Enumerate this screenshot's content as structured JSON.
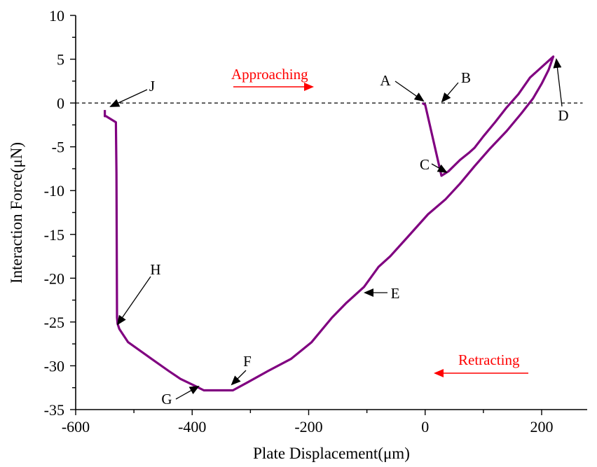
{
  "chart_data": {
    "type": "line",
    "xlabel": "Plate Displacement(μm)",
    "ylabel": "Interaction Force(μN)",
    "xlim": [
      -600,
      280
    ],
    "ylim": [
      -35,
      10
    ],
    "xticks": [
      -600,
      -400,
      -200,
      0,
      200
    ],
    "yticks": [
      10,
      5,
      0,
      -5,
      -10,
      -15,
      -20,
      -25,
      -30,
      -35
    ],
    "grid": false,
    "legend": "none",
    "reference_line": {
      "y": 0,
      "style": "dashed"
    },
    "series": [
      {
        "color": "#800080",
        "x": [
          -550,
          -550,
          -548,
          -531,
          -530,
          -529,
          -528,
          -525,
          -510,
          -470,
          -440,
          -420,
          -395,
          -380,
          -330,
          -305,
          -270,
          -230,
          -195,
          -160,
          -135,
          -105,
          -80,
          -60,
          -30,
          5,
          35,
          60,
          85,
          110,
          140,
          165,
          185,
          200,
          212,
          220,
          200,
          180,
          160,
          140,
          120,
          100,
          85,
          75,
          60,
          40,
          28,
          0,
          -5
        ],
        "y": [
          -0.8,
          -1.5,
          -1.5,
          -2.2,
          -8,
          -24.5,
          -25.2,
          -25.8,
          -27.3,
          -29.2,
          -30.6,
          -31.5,
          -32.3,
          -32.8,
          -32.8,
          -31.9,
          -30.6,
          -29.2,
          -27.3,
          -24.5,
          -22.8,
          -21.0,
          -18.7,
          -17.5,
          -15.3,
          -12.7,
          -11.0,
          -9.2,
          -7.2,
          -5.3,
          -3.2,
          -1.2,
          0.5,
          2.2,
          3.8,
          5.3,
          4.1,
          2.9,
          1.0,
          -0.5,
          -2.2,
          -3.8,
          -5.1,
          -5.7,
          -6.5,
          -7.8,
          -8.3,
          -0.2,
          0
        ]
      }
    ],
    "point_labels": [
      "A",
      "B",
      "C",
      "D",
      "E",
      "F",
      "G",
      "H",
      "J"
    ],
    "annotations": [
      {
        "text": "Approaching",
        "color": "#ff0000"
      },
      {
        "text": "Retracting",
        "color": "#ff0000"
      }
    ]
  }
}
